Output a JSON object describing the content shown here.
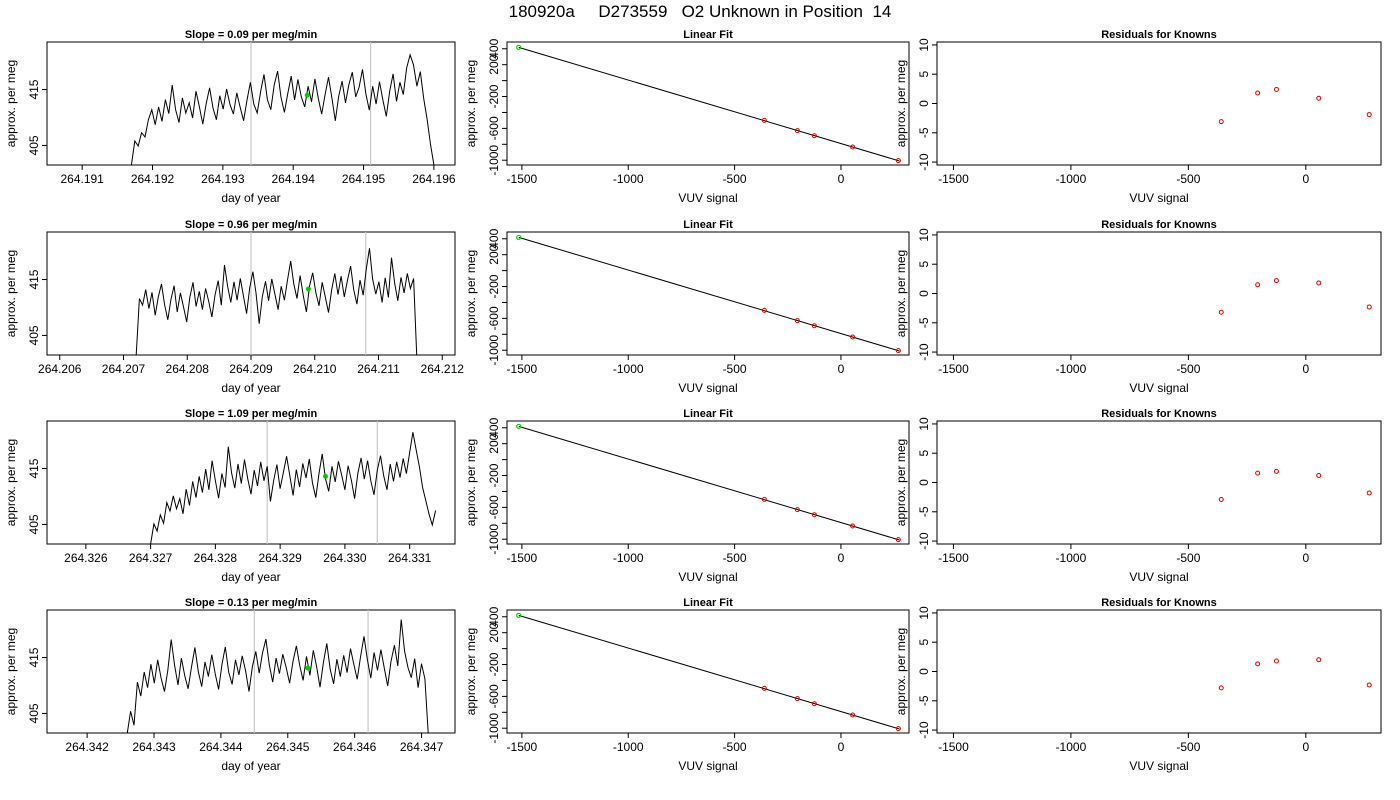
{
  "title": "180920a     D273559   O2 Unknown in Position  14",
  "chart_data": [
    {
      "type": "line",
      "title": "Slope =  0.09  per meg/min",
      "xlabel": "day of year",
      "ylabel": "approx. per meg",
      "xlim": [
        264.1905,
        264.1963
      ],
      "ylim": [
        401.5,
        423.5
      ],
      "xticks": [
        264.191,
        264.192,
        264.193,
        264.194,
        264.195,
        264.196
      ],
      "xtick_labels": [
        "264.191",
        "264.192",
        "264.193",
        "264.194",
        "264.195",
        "264.196"
      ],
      "yticks": [
        405,
        415
      ],
      "ytick_labels": [
        "405",
        "415"
      ],
      "vlines": [
        264.1934,
        264.1951
      ],
      "data_x_start": 264.1917,
      "data_x_end": 264.196,
      "marker": {
        "x": 264.1942,
        "y": 414
      },
      "series": [
        {
          "values": [
            401.5,
            405.8,
            404.9,
            407.3,
            406.5,
            409.6,
            411.4,
            408.7,
            411.9,
            409.3,
            413.2,
            410.7,
            415.8,
            411.4,
            409.1,
            413.5,
            410.8,
            412.6,
            409.9,
            414.7,
            411.9,
            408.8,
            412.5,
            415.3,
            411.7,
            409.6,
            413.9,
            411.5,
            415.1,
            412.3,
            410.6,
            414.4,
            411.8,
            409.4,
            413.1,
            416.3,
            412.4,
            410.8,
            414.6,
            417.7,
            413.2,
            411.4,
            415.8,
            418.3,
            413.6,
            410.9,
            414.3,
            417.4,
            413.1,
            416.8,
            413.7,
            411.9,
            415.6,
            412.8,
            416.9,
            413.4,
            410.6,
            414.1,
            417.2,
            413.5,
            409.4,
            413.8,
            416.5,
            412.6,
            415.9,
            418.1,
            413.7,
            415.4,
            418.6,
            414.2,
            411.3,
            415.6,
            412.4,
            416.4,
            413.1,
            410.2,
            414.7,
            417.8,
            412.9,
            416.3,
            414.1,
            418.9,
            421.2,
            419.4,
            415.6,
            418.2,
            413.4,
            409.7,
            405.2,
            401.5
          ]
        }
      ]
    },
    {
      "type": "scatter",
      "title": "Linear Fit",
      "xlabel": "VUV signal",
      "ylabel": "approx. per meg",
      "xlim": [
        -1570,
        320
      ],
      "ylim": [
        -1060,
        485
      ],
      "xticks": [
        -1500,
        -1000,
        -500,
        0
      ],
      "xtick_labels": [
        "-1500",
        "-1000",
        "-500",
        "0"
      ],
      "yticks": [
        -1000,
        -800,
        -600,
        -400,
        -200,
        0,
        200,
        400
      ],
      "ytick_labels": [
        "-1000",
        "",
        "-600",
        "",
        "-200",
        "",
        "200",
        "400"
      ],
      "fit_line": [
        [
          -1515,
          418
        ],
        [
          275,
          -1010
        ]
      ],
      "unknown_point": {
        "x": -1515,
        "y": 418
      },
      "known_points": [
        {
          "x": -360,
          "y": -500
        },
        {
          "x": -205,
          "y": -628
        },
        {
          "x": -125,
          "y": -692
        },
        {
          "x": 55,
          "y": -834
        },
        {
          "x": 270,
          "y": -1005
        }
      ]
    },
    {
      "type": "scatter",
      "title": "Residuals for Knowns",
      "xlabel": "VUV signal",
      "ylabel": "approx. per meg",
      "xlim": [
        -1570,
        320
      ],
      "ylim": [
        -10.5,
        10.5
      ],
      "xticks": [
        -1500,
        -1000,
        -500,
        0
      ],
      "xtick_labels": [
        "-1500",
        "-1000",
        "-500",
        "0"
      ],
      "yticks": [
        -10,
        -5,
        0,
        5,
        10
      ],
      "ytick_labels": [
        "-10",
        "-5",
        "0",
        "5",
        "10"
      ],
      "points": [
        {
          "x": -360,
          "y": -3.1
        },
        {
          "x": -205,
          "y": 1.8
        },
        {
          "x": -125,
          "y": 2.4
        },
        {
          "x": 55,
          "y": 0.9
        },
        {
          "x": 270,
          "y": -1.9
        }
      ]
    },
    {
      "type": "line",
      "title": "Slope =  0.96  per meg/min",
      "xlabel": "day of year",
      "ylabel": "approx. per meg",
      "xlim": [
        264.2058,
        264.2122
      ],
      "ylim": [
        401.5,
        423.5
      ],
      "xticks": [
        264.206,
        264.207,
        264.208,
        264.209,
        264.21,
        264.211,
        264.212
      ],
      "xtick_labels": [
        "264.206",
        "264.207",
        "264.208",
        "264.209",
        "264.210",
        "264.211",
        "264.212"
      ],
      "yticks": [
        405,
        415
      ],
      "ytick_labels": [
        "405",
        "415"
      ],
      "vlines": [
        264.209,
        264.2108
      ],
      "data_x_start": 264.2072,
      "data_x_end": 264.2116,
      "marker": {
        "x": 264.2099,
        "y": 413.3
      },
      "series": [
        {
          "values": [
            401.5,
            411.6,
            410.4,
            413.2,
            409.8,
            412.7,
            408.6,
            411.9,
            414.2,
            410.5,
            407.8,
            411.4,
            413.9,
            409.2,
            412.6,
            410.1,
            407.4,
            411.8,
            414.5,
            410.2,
            412.9,
            409.6,
            413.4,
            411.1,
            408.3,
            412.2,
            414.8,
            410.4,
            417.6,
            413.8,
            410.9,
            414.6,
            411.3,
            415.2,
            412.1,
            408.9,
            413.5,
            416.4,
            412.6,
            407.1,
            411.9,
            414.7,
            411.2,
            415.1,
            412.4,
            409.6,
            413.8,
            411.3,
            414.9,
            418.3,
            414.2,
            411.6,
            415.7,
            412.1,
            409.2,
            413.9,
            416.2,
            412.6,
            410.3,
            414.5,
            411.8,
            409.1,
            413.2,
            416.1,
            412.3,
            415.6,
            411.9,
            414.8,
            417.4,
            413.2,
            410.6,
            414.9,
            412.2,
            416.9,
            420.6,
            415.1,
            412.4,
            414.6,
            410.9,
            415.3,
            411.8,
            418.9,
            414.3,
            411.2,
            415.4,
            412.6,
            416.1,
            413.4,
            415.2,
            401.5
          ]
        }
      ]
    },
    {
      "type": "scatter",
      "title": "Linear Fit",
      "xlabel": "VUV signal",
      "ylabel": "approx. per meg",
      "xlim": [
        -1570,
        320
      ],
      "ylim": [
        -1060,
        485
      ],
      "xticks": [
        -1500,
        -1000,
        -500,
        0
      ],
      "xtick_labels": [
        "-1500",
        "-1000",
        "-500",
        "0"
      ],
      "yticks": [
        -1000,
        -800,
        -600,
        -400,
        -200,
        0,
        200,
        400
      ],
      "ytick_labels": [
        "-1000",
        "",
        "-600",
        "",
        "-200",
        "",
        "200",
        "400"
      ],
      "fit_line": [
        [
          -1515,
          418
        ],
        [
          275,
          -1010
        ]
      ],
      "unknown_point": {
        "x": -1515,
        "y": 418
      },
      "known_points": [
        {
          "x": -360,
          "y": -500
        },
        {
          "x": -205,
          "y": -628
        },
        {
          "x": -125,
          "y": -692
        },
        {
          "x": 55,
          "y": -834
        },
        {
          "x": 270,
          "y": -1005
        }
      ]
    },
    {
      "type": "scatter",
      "title": "Residuals for Knowns",
      "xlabel": "VUV signal",
      "ylabel": "approx. per meg",
      "xlim": [
        -1570,
        320
      ],
      "ylim": [
        -10.5,
        10.5
      ],
      "xticks": [
        -1500,
        -1000,
        -500,
        0
      ],
      "xtick_labels": [
        "-1500",
        "-1000",
        "-500",
        "0"
      ],
      "yticks": [
        -10,
        -5,
        0,
        5,
        10
      ],
      "ytick_labels": [
        "-10",
        "-5",
        "0",
        "5",
        "10"
      ],
      "points": [
        {
          "x": -360,
          "y": -3.2
        },
        {
          "x": -205,
          "y": 1.5
        },
        {
          "x": -125,
          "y": 2.2
        },
        {
          "x": 55,
          "y": 1.8
        },
        {
          "x": 270,
          "y": -2.3
        }
      ]
    },
    {
      "type": "line",
      "title": "Slope =  1.09  per meg/min",
      "xlabel": "day of year",
      "ylabel": "approx. per meg",
      "xlim": [
        264.3254,
        264.3317
      ],
      "ylim": [
        401.5,
        423.5
      ],
      "xticks": [
        264.326,
        264.327,
        264.328,
        264.329,
        264.33,
        264.331
      ],
      "xtick_labels": [
        "264.326",
        "264.327",
        "264.328",
        "264.329",
        "264.330",
        "264.331"
      ],
      "yticks": [
        405,
        415
      ],
      "ytick_labels": [
        "405",
        "415"
      ],
      "vlines": [
        264.3288,
        264.3305
      ],
      "data_x_start": 264.327,
      "data_x_end": 264.3314,
      "marker": {
        "x": 264.3297,
        "y": 413.6
      },
      "series": [
        {
          "values": [
            401.5,
            405.1,
            403.8,
            406.7,
            405.2,
            408.9,
            407.4,
            410.1,
            407.8,
            409.6,
            406.9,
            411.3,
            408.4,
            412.7,
            409.8,
            413.6,
            410.7,
            414.9,
            411.2,
            416.4,
            412.8,
            409.7,
            414.1,
            411.6,
            418.9,
            414.2,
            411.5,
            415.8,
            412.3,
            416.6,
            413.1,
            410.4,
            414.7,
            411.9,
            416.2,
            412.8,
            415.4,
            409.1,
            412.9,
            415.7,
            411.4,
            414.3,
            417.2,
            413.6,
            410.2,
            414.8,
            411.7,
            415.9,
            413.3,
            416.7,
            412.4,
            409.8,
            414.1,
            417.6,
            413.2,
            410.9,
            415.4,
            412.6,
            416.3,
            413.8,
            411.2,
            415.5,
            412.9,
            409.6,
            414.2,
            416.9,
            413.1,
            416.4,
            412.8,
            410.3,
            414.7,
            417.3,
            413.6,
            411.2,
            415.8,
            412.7,
            416.2,
            413.4,
            416.8,
            414.1,
            417.9,
            421.5,
            418.4,
            415.3,
            411.6,
            409.2,
            406.8,
            404.9,
            407.5
          ]
        }
      ]
    },
    {
      "type": "scatter",
      "title": "Linear Fit",
      "xlabel": "VUV signal",
      "ylabel": "approx. per meg",
      "xlim": [
        -1570,
        320
      ],
      "ylim": [
        -1060,
        485
      ],
      "xticks": [
        -1500,
        -1000,
        -500,
        0
      ],
      "xtick_labels": [
        "-1500",
        "-1000",
        "-500",
        "0"
      ],
      "yticks": [
        -1000,
        -800,
        -600,
        -400,
        -200,
        0,
        200,
        400
      ],
      "ytick_labels": [
        "-1000",
        "",
        "-600",
        "",
        "-200",
        "",
        "200",
        "400"
      ],
      "fit_line": [
        [
          -1515,
          418
        ],
        [
          275,
          -1010
        ]
      ],
      "unknown_point": {
        "x": -1515,
        "y": 418
      },
      "known_points": [
        {
          "x": -360,
          "y": -500
        },
        {
          "x": -205,
          "y": -628
        },
        {
          "x": -125,
          "y": -692
        },
        {
          "x": 55,
          "y": -834
        },
        {
          "x": 270,
          "y": -1005
        }
      ]
    },
    {
      "type": "scatter",
      "title": "Residuals for Knowns",
      "xlabel": "VUV signal",
      "ylabel": "approx. per meg",
      "xlim": [
        -1570,
        320
      ],
      "ylim": [
        -10.5,
        10.5
      ],
      "xticks": [
        -1500,
        -1000,
        -500,
        0
      ],
      "xtick_labels": [
        "-1500",
        "-1000",
        "-500",
        "0"
      ],
      "yticks": [
        -10,
        -5,
        0,
        5,
        10
      ],
      "ytick_labels": [
        "-10",
        "-5",
        "0",
        "5",
        "10"
      ],
      "points": [
        {
          "x": -360,
          "y": -2.9
        },
        {
          "x": -205,
          "y": 1.6
        },
        {
          "x": -125,
          "y": 1.9
        },
        {
          "x": 55,
          "y": 1.2
        },
        {
          "x": 270,
          "y": -1.8
        }
      ]
    },
    {
      "type": "line",
      "title": "Slope =  0.13  per meg/min",
      "xlabel": "day of year",
      "ylabel": "approx. per meg",
      "xlim": [
        264.3414,
        264.3475
      ],
      "ylim": [
        401.5,
        423.5
      ],
      "xticks": [
        264.342,
        264.343,
        264.344,
        264.345,
        264.346,
        264.347
      ],
      "xtick_labels": [
        "264.342",
        "264.343",
        "264.344",
        "264.345",
        "264.346",
        "264.347"
      ],
      "yticks": [
        405,
        415
      ],
      "ytick_labels": [
        "405",
        "415"
      ],
      "vlines": [
        264.3445,
        264.3462
      ],
      "data_x_start": 264.3426,
      "data_x_end": 264.3471,
      "marker": {
        "x": 264.3453,
        "y": 413.1
      },
      "series": [
        {
          "values": [
            401.5,
            405.4,
            402.9,
            410.6,
            408.1,
            412.4,
            409.6,
            413.8,
            410.4,
            414.6,
            411.3,
            408.9,
            412.7,
            418.2,
            413.6,
            410.1,
            414.9,
            411.7,
            409.4,
            413.3,
            416.8,
            412.5,
            409.8,
            414.2,
            411.6,
            415.5,
            412.1,
            409.3,
            413.8,
            416.9,
            412.4,
            410.2,
            414.6,
            411.9,
            415.3,
            412.6,
            408.9,
            413.4,
            416.1,
            412.2,
            415.8,
            418.3,
            413.7,
            410.6,
            414.9,
            412.1,
            415.6,
            413.2,
            410.4,
            414.3,
            417.1,
            413.6,
            410.9,
            415.2,
            411.8,
            416.3,
            413.4,
            409.7,
            414.1,
            417.5,
            412.9,
            410.3,
            414.7,
            411.6,
            415.4,
            412.3,
            416.6,
            413.8,
            411.1,
            415.2,
            418.8,
            414.6,
            411.3,
            415.9,
            412.7,
            416.4,
            413.1,
            409.9,
            414.3,
            417.2,
            413.5,
            421.8,
            416.1,
            413.2,
            411.4,
            414.8,
            409.6,
            413.9,
            411.2,
            401.5
          ]
        }
      ]
    },
    {
      "type": "scatter",
      "title": "Linear Fit",
      "xlabel": "VUV signal",
      "ylabel": "approx. per meg",
      "xlim": [
        -1570,
        320
      ],
      "ylim": [
        -1060,
        485
      ],
      "xticks": [
        -1500,
        -1000,
        -500,
        0
      ],
      "xtick_labels": [
        "-1500",
        "-1000",
        "-500",
        "0"
      ],
      "yticks": [
        -1000,
        -800,
        -600,
        -400,
        -200,
        0,
        200,
        400
      ],
      "ytick_labels": [
        "-1000",
        "",
        "-600",
        "",
        "-200",
        "",
        "200",
        "400"
      ],
      "fit_line": [
        [
          -1515,
          418
        ],
        [
          275,
          -1010
        ]
      ],
      "unknown_point": {
        "x": -1515,
        "y": 418
      },
      "known_points": [
        {
          "x": -360,
          "y": -500
        },
        {
          "x": -205,
          "y": -628
        },
        {
          "x": -125,
          "y": -692
        },
        {
          "x": 55,
          "y": -834
        },
        {
          "x": 270,
          "y": -1005
        }
      ]
    },
    {
      "type": "scatter",
      "title": "Residuals for Knowns",
      "xlabel": "VUV signal",
      "ylabel": "approx. per meg",
      "xlim": [
        -1570,
        320
      ],
      "ylim": [
        -10.5,
        10.5
      ],
      "xticks": [
        -1500,
        -1000,
        -500,
        0
      ],
      "xtick_labels": [
        "-1500",
        "-1000",
        "-500",
        "0"
      ],
      "yticks": [
        -10,
        -5,
        0,
        5,
        10
      ],
      "ytick_labels": [
        "-10",
        "-5",
        "0",
        "5",
        "10"
      ],
      "points": [
        {
          "x": -360,
          "y": -2.8
        },
        {
          "x": -205,
          "y": 1.3
        },
        {
          "x": -125,
          "y": 1.8
        },
        {
          "x": 55,
          "y": 2.0
        },
        {
          "x": 270,
          "y": -2.3
        }
      ]
    }
  ]
}
